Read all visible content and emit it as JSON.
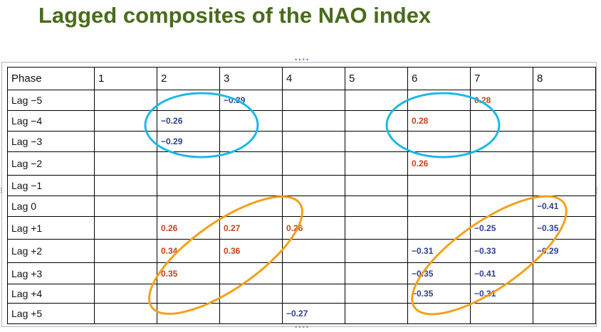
{
  "title": "Lagged composites of the NAO index",
  "table": {
    "header": [
      "Phase",
      "1",
      "2",
      "3",
      "4",
      "5",
      "6",
      "7",
      "8"
    ],
    "rows": [
      {
        "lag": "Lag −5",
        "cells": [
          "",
          "",
          "−0.39",
          "",
          "",
          "",
          "0.28",
          ""
        ]
      },
      {
        "lag": "Lag −4",
        "cells": [
          "",
          "−0.26",
          "",
          "",
          "",
          "0.28",
          "",
          ""
        ]
      },
      {
        "lag": "Lag −3",
        "cells": [
          "",
          "−0.29",
          "",
          "",
          "",
          "",
          "",
          ""
        ]
      },
      {
        "lag": "Lag −2",
        "cells": [
          "",
          "",
          "",
          "",
          "",
          "0.26",
          "",
          ""
        ]
      },
      {
        "lag": "Lag −1",
        "cells": [
          "",
          "",
          "",
          "",
          "",
          "",
          "",
          ""
        ]
      },
      {
        "lag": "Lag 0",
        "cells": [
          "",
          "",
          "",
          "",
          "",
          "",
          "",
          "−0.41"
        ]
      },
      {
        "lag": "Lag +1",
        "cells": [
          "",
          "0.26",
          "0.27",
          "0.26",
          "",
          "",
          "−0.25",
          "−0.35"
        ]
      },
      {
        "lag": "Lag +2",
        "cells": [
          "",
          "0.34",
          "0.36",
          "",
          "",
          "−0.31",
          "−0.33",
          "−0.29"
        ]
      },
      {
        "lag": "Lag +3",
        "cells": [
          "",
          "0.35",
          "",
          "",
          "",
          "−0.35",
          "−0.41",
          ""
        ]
      },
      {
        "lag": "Lag +4",
        "cells": [
          "",
          "",
          "",
          "",
          "",
          "−0.35",
          "−0.31",
          ""
        ]
      },
      {
        "lag": "Lag +5",
        "cells": [
          "",
          "",
          "",
          "−0.27",
          "",
          "",
          "",
          ""
        ]
      }
    ]
  },
  "colors": {
    "title": "#4a6b1e",
    "positive_value": "#c8401c",
    "negative_value": "#2e3f8f",
    "cyan_ellipse": "#1ab8e6",
    "orange_ellipse": "#f4a01a"
  }
}
